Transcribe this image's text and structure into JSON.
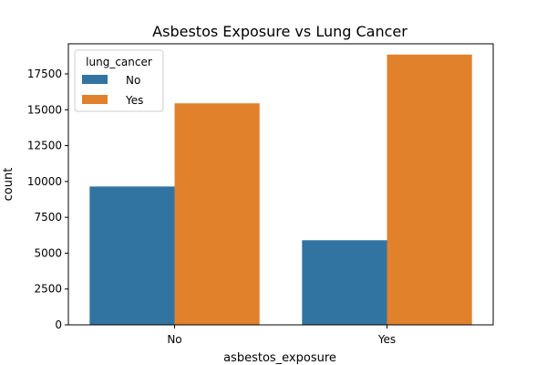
{
  "chart_data": {
    "type": "bar",
    "title": "Asbestos Exposure vs Lung Cancer",
    "xlabel": "asbestos_exposure",
    "ylabel": "count",
    "categories": [
      "No",
      "Yes"
    ],
    "series": [
      {
        "name": "No",
        "values": [
          9650,
          5900
        ],
        "color": "#3274a1"
      },
      {
        "name": "Yes",
        "values": [
          15450,
          18850
        ],
        "color": "#e1812c"
      }
    ],
    "ylim": [
      0,
      19600
    ],
    "yticks": [
      0,
      2500,
      5000,
      7500,
      10000,
      12500,
      15000,
      17500
    ],
    "ytick_labels": [
      "0",
      "2500",
      "5000",
      "7500",
      "10000",
      "12500",
      "15000",
      "17500"
    ],
    "legend": {
      "title": "lung_cancer",
      "placement": "top-left"
    },
    "grid": false
  }
}
